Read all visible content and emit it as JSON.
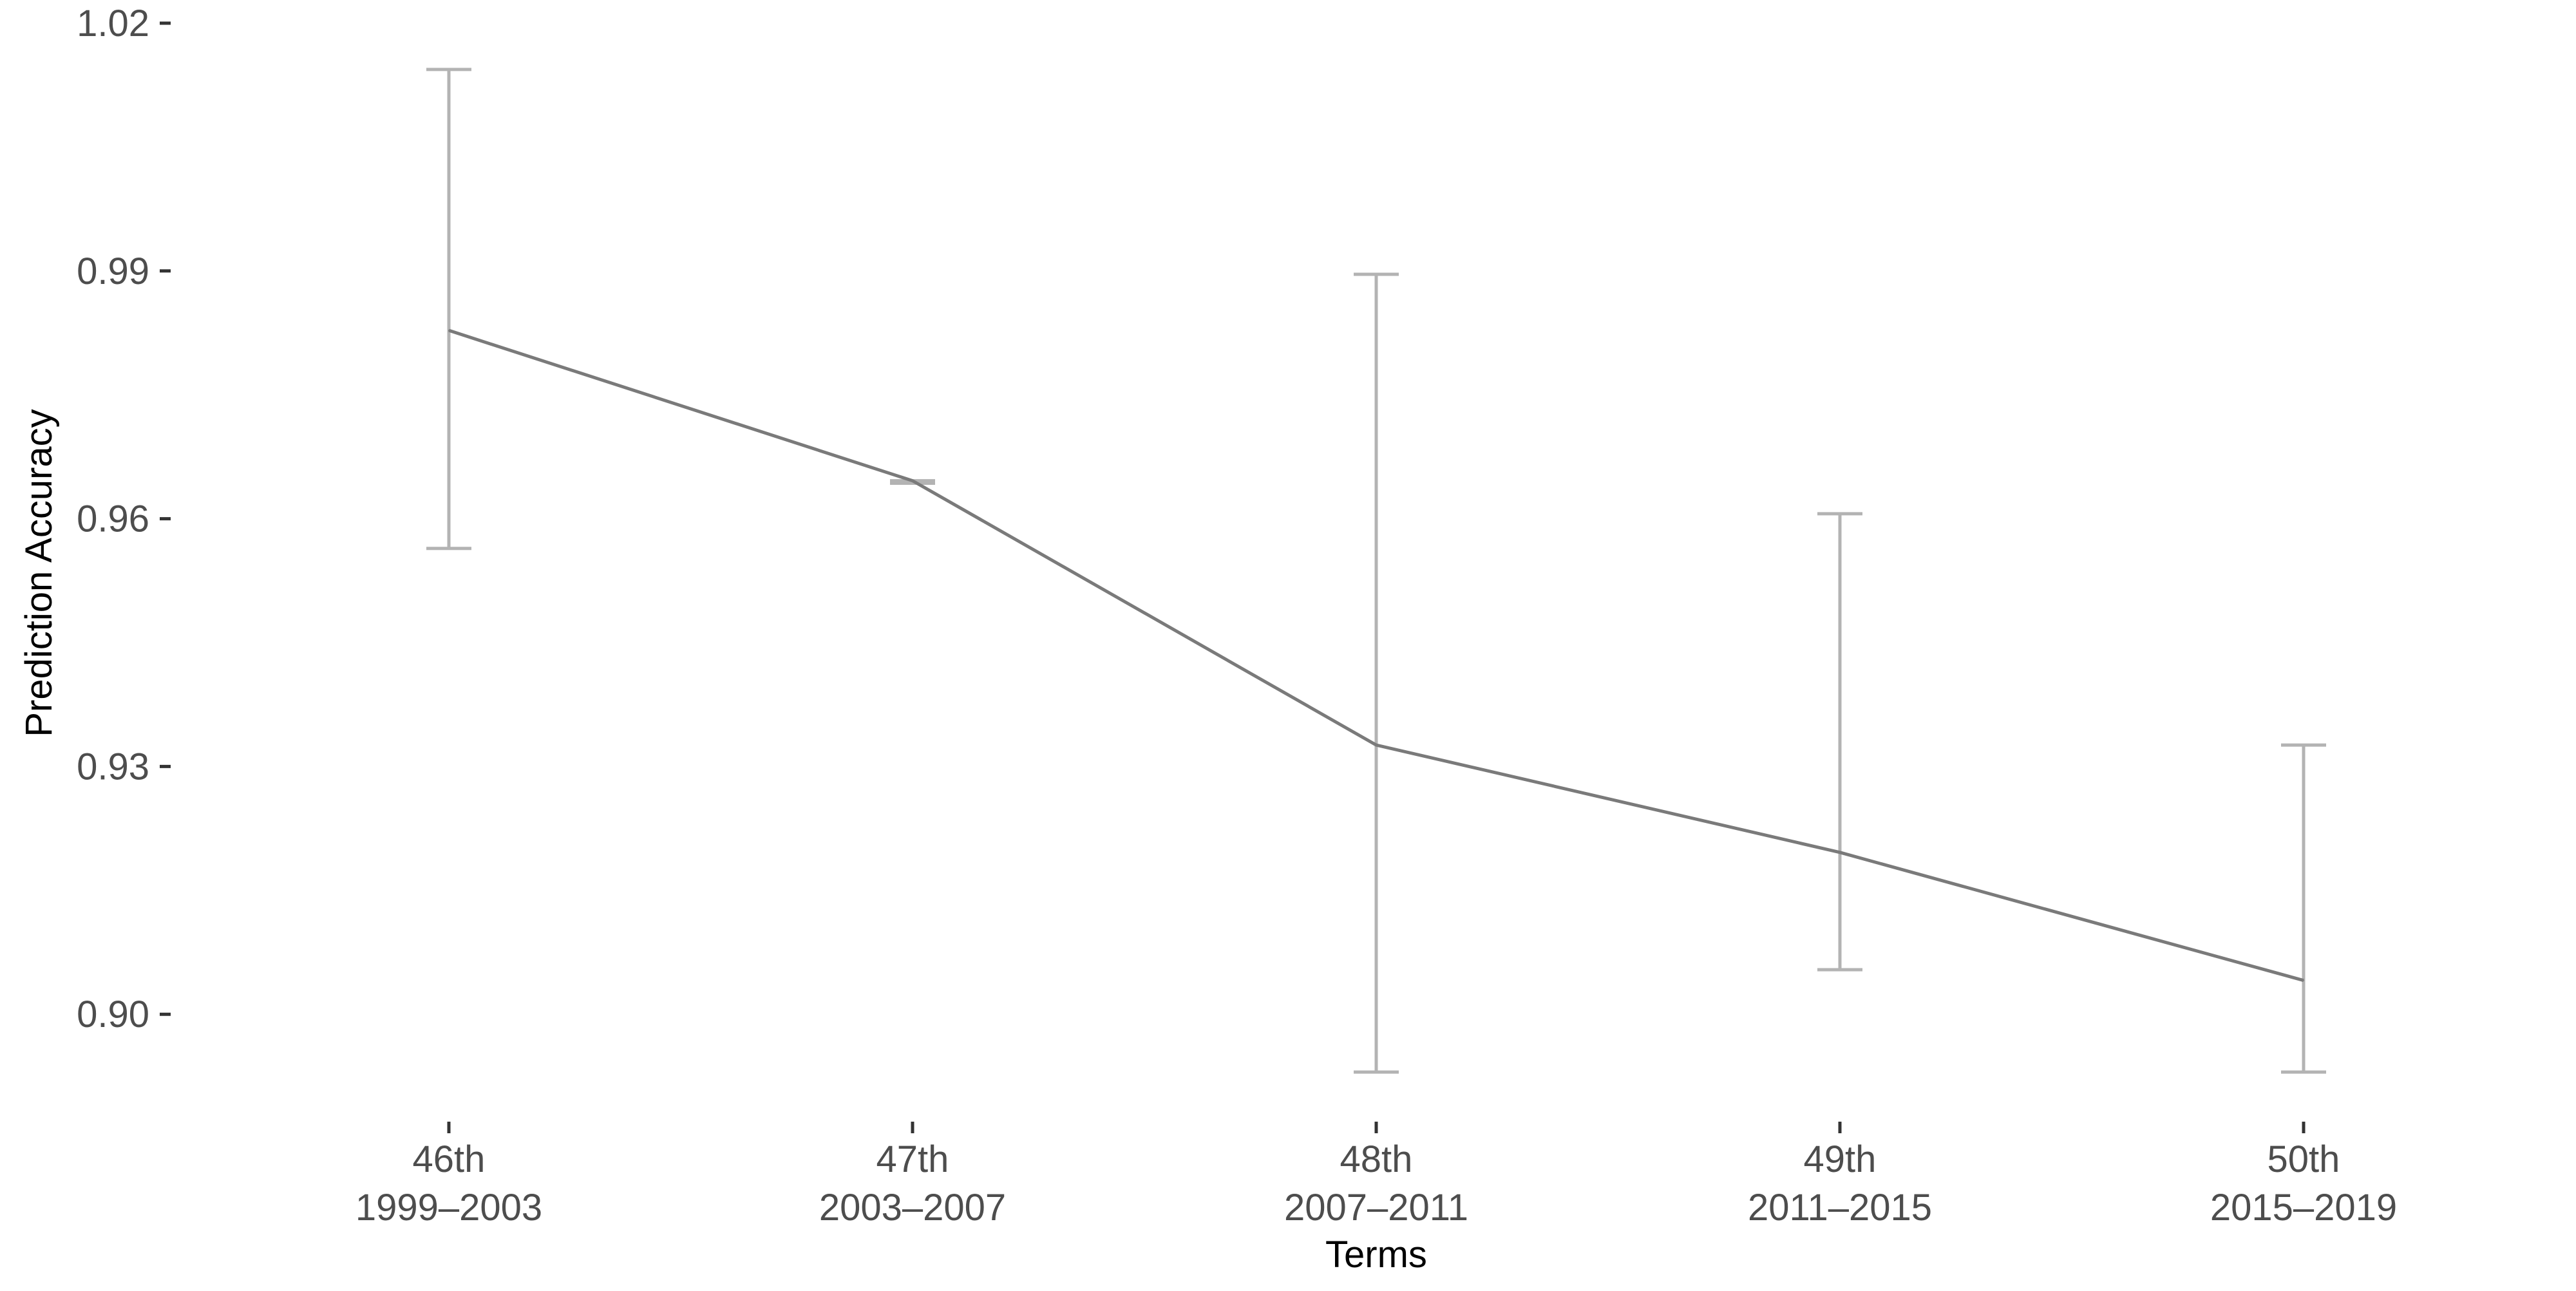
{
  "chart_data": {
    "type": "line",
    "title": "",
    "xlabel": "Terms",
    "ylabel": "Prediction Accuracy",
    "categories": [
      {
        "line1": "46th",
        "line2": "1999–2003"
      },
      {
        "line1": "47th",
        "line2": "2003–2007"
      },
      {
        "line1": "48th",
        "line2": "2007–2011"
      },
      {
        "line1": "49th",
        "line2": "2011–2015"
      },
      {
        "line1": "50th",
        "line2": "2015–2019"
      }
    ],
    "values": [
      0.9828,
      0.9646,
      0.9326,
      0.9196,
      0.9041
    ],
    "error_bars": [
      {
        "low": 0.9564,
        "high": 1.0144
      },
      {
        "low": 0.9643,
        "high": 0.9646
      },
      {
        "low": 0.893,
        "high": 0.9896
      },
      {
        "low": 0.9054,
        "high": 0.9606
      },
      {
        "low": 0.893,
        "high": 0.9326
      }
    ],
    "ylim": [
      0.887,
      1.02
    ],
    "yticks": [
      {
        "value": 0.9,
        "label": "0.90"
      },
      {
        "value": 0.93,
        "label": "0.93"
      },
      {
        "value": 0.96,
        "label": "0.96"
      },
      {
        "value": 0.99,
        "label": "0.99"
      },
      {
        "value": 1.02,
        "label": "1.02"
      }
    ],
    "grid": false,
    "legend": "none"
  }
}
